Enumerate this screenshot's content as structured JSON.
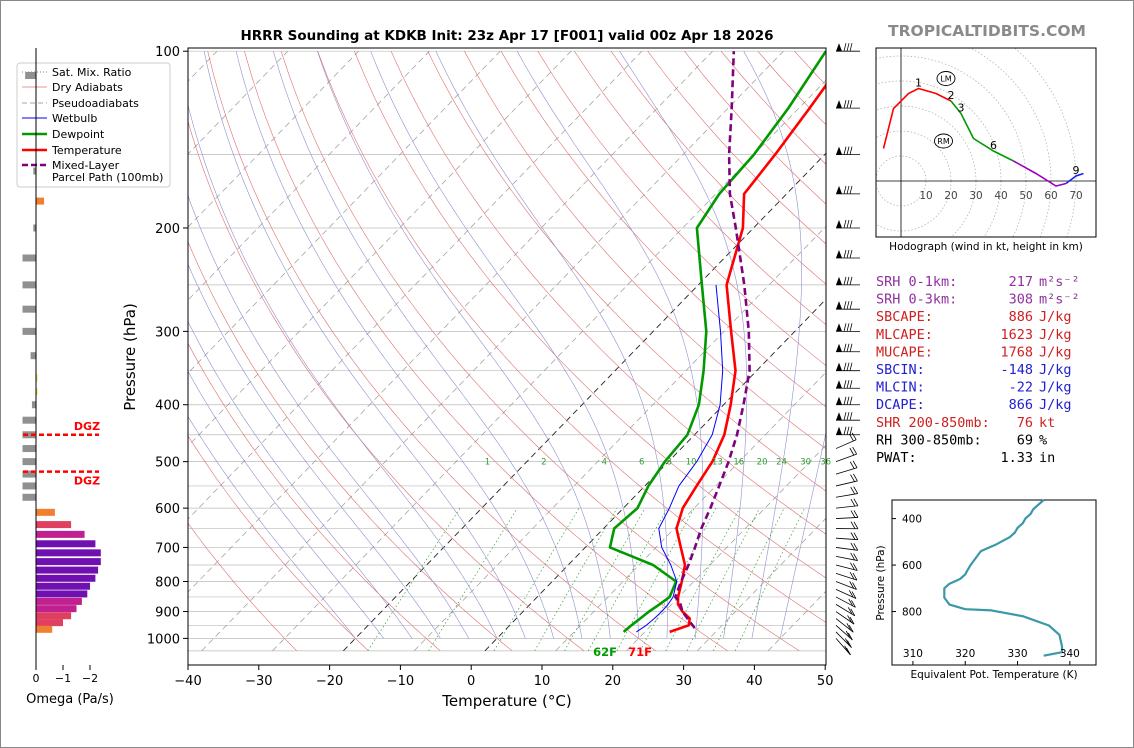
{
  "header": {
    "title": "HRRR Sounding at KDKB Init: 23z Apr 17 [F001] valid 00z Apr 18 2026",
    "brand": "TROPICALTIDBITS.COM"
  },
  "colors": {
    "temperature": "#ff0000",
    "dewpoint": "#009900",
    "wetbulb": "#0000ff",
    "parcel": "#800080",
    "dry_adiabat": "#e07070",
    "pseudoadiabat": "#9090d0",
    "mixing_ratio": "#30a030"
  },
  "legend": {
    "items": [
      {
        "label": "Sat. Mix. Ratio"
      },
      {
        "label": "Dry Adiabats"
      },
      {
        "label": "Pseudoadiabats"
      },
      {
        "label": "Wetbulb"
      },
      {
        "label": "Dewpoint"
      },
      {
        "label": "Temperature"
      },
      {
        "label": "Mixed-Layer",
        "label2": "Parcel Path (100mb)"
      }
    ]
  },
  "omega": {
    "xlabel": "Omega (Pa/s)",
    "ticks": [
      "0",
      "−1",
      "−2"
    ],
    "dgz_label": "DGZ"
  },
  "hodograph": {
    "caption": "Hodograph (wind in kt, height in km)",
    "rings": [
      "10",
      "20",
      "30",
      "40",
      "50",
      "60",
      "70"
    ],
    "height_labels": [
      "1",
      "2",
      "3",
      "6",
      "9"
    ],
    "lm_label": "LM",
    "rm_label": "RM"
  },
  "indices": [
    {
      "label": "SRH 0-1km:",
      "value": "217",
      "unit": "m²s⁻²",
      "color": "#9030a0"
    },
    {
      "label": "SRH 0-3km:",
      "value": "308",
      "unit": "m²s⁻²",
      "color": "#9030a0"
    },
    {
      "label": "SBCAPE:",
      "value": "886",
      "unit": "J/kg",
      "color": "#d02020"
    },
    {
      "label": "MLCAPE:",
      "value": "1623",
      "unit": "J/kg",
      "color": "#d02020"
    },
    {
      "label": "MUCAPE:",
      "value": "1768",
      "unit": "J/kg",
      "color": "#d02020"
    },
    {
      "label": "SBCIN:",
      "value": "-148",
      "unit": "J/kg",
      "color": "#2020d0"
    },
    {
      "label": "MLCIN:",
      "value": "-22",
      "unit": "J/kg",
      "color": "#2020d0"
    },
    {
      "label": "DCAPE:",
      "value": "866",
      "unit": "J/kg",
      "color": "#2020d0"
    },
    {
      "label": "SHR 200-850mb:",
      "value": "76",
      "unit": "kt",
      "color": "#d02020"
    },
    {
      "label": "RH 300-850mb:",
      "value": "69",
      "unit": "%",
      "color": "#000000"
    },
    {
      "label": "PWAT:",
      "value": "1.33",
      "unit": "in",
      "color": "#000000"
    }
  ],
  "surface_labels": {
    "dewpoint": "62F",
    "temperature": "71F"
  },
  "chart_data": [
    {
      "type": "line",
      "title": "HRRR Sounding at KDKB Init: 23z Apr 17 [F001] valid 00z Apr 18 2026",
      "xlabel": "Temperature (°C)",
      "ylabel": "Pressure (hPa)",
      "xlim": [
        -40,
        50
      ],
      "ylim": [
        1050,
        100
      ],
      "x_ticks": [
        "−40",
        "−30",
        "−20",
        "−10",
        "0",
        "10",
        "20",
        "30",
        "40",
        "50"
      ],
      "y_ticks": [
        "100",
        "200",
        "300",
        "400",
        "500",
        "600",
        "700",
        "800",
        "900",
        "1000"
      ],
      "mixing_ratio_labels": [
        "1",
        "2",
        "4",
        "6",
        "8",
        "10",
        "13",
        "16",
        "20",
        "24",
        "30",
        "36"
      ],
      "series": [
        {
          "name": "Temperature",
          "points": [
            [
              23.5,
              975
            ],
            [
              25.3,
              950
            ],
            [
              24.5,
              925
            ],
            [
              22.5,
              900
            ],
            [
              20.9,
              875
            ],
            [
              19.9,
              850
            ],
            [
              18.3,
              800
            ],
            [
              16.5,
              750
            ],
            [
              13.5,
              700
            ],
            [
              10.3,
              650
            ],
            [
              8.4,
              600
            ],
            [
              7.3,
              550
            ],
            [
              6.2,
              500
            ],
            [
              4.2,
              450
            ],
            [
              1.0,
              400
            ],
            [
              -3.0,
              350
            ],
            [
              -9.0,
              300
            ],
            [
              -16.0,
              250
            ],
            [
              -21.5,
              200
            ],
            [
              -26.0,
              175
            ],
            [
              -27.0,
              150
            ],
            [
              -28.5,
              125
            ],
            [
              -30.5,
              100
            ]
          ]
        },
        {
          "name": "Dewpoint",
          "points": [
            [
              17.0,
              975
            ],
            [
              17.2,
              950
            ],
            [
              17.5,
              925
            ],
            [
              17.8,
              900
            ],
            [
              18.3,
              875
            ],
            [
              18.7,
              850
            ],
            [
              17.5,
              800
            ],
            [
              12.0,
              750
            ],
            [
              3.5,
              700
            ],
            [
              1.5,
              650
            ],
            [
              2.0,
              600
            ],
            [
              0.5,
              550
            ],
            [
              -0.5,
              500
            ],
            [
              -1.0,
              450
            ],
            [
              -3.5,
              400
            ],
            [
              -7.5,
              350
            ],
            [
              -12.5,
              300
            ],
            [
              -19.5,
              250
            ],
            [
              -28.0,
              200
            ],
            [
              -29.5,
              175
            ],
            [
              -30.0,
              150
            ],
            [
              -31.5,
              125
            ],
            [
              -34.0,
              100
            ]
          ]
        },
        {
          "name": "Wetbulb",
          "points": [
            [
              18.8,
              975
            ],
            [
              19.3,
              950
            ],
            [
              19.5,
              925
            ],
            [
              19.6,
              900
            ],
            [
              19.5,
              875
            ],
            [
              19.2,
              850
            ],
            [
              17.6,
              800
            ],
            [
              14.5,
              750
            ],
            [
              10.8,
              700
            ],
            [
              7.8,
              650
            ],
            [
              6.5,
              600
            ],
            [
              4.8,
              550
            ],
            [
              4.0,
              500
            ],
            [
              2.5,
              450
            ],
            [
              -0.5,
              400
            ],
            [
              -4.8,
              350
            ],
            [
              -10.5,
              300
            ],
            [
              -17.5,
              250
            ]
          ]
        },
        {
          "name": "Mixed-Layer Parcel Path (100mb)",
          "points": [
            [
              26.5,
              960
            ],
            [
              24.5,
              930
            ],
            [
              22.5,
              900
            ],
            [
              21.0,
              870
            ],
            [
              19.5,
              850
            ],
            [
              18.2,
              800
            ],
            [
              17.0,
              750
            ],
            [
              15.5,
              700
            ],
            [
              13.8,
              650
            ],
            [
              12.3,
              600
            ],
            [
              10.5,
              550
            ],
            [
              8.5,
              500
            ],
            [
              6.0,
              450
            ],
            [
              2.8,
              400
            ],
            [
              -1.0,
              350
            ],
            [
              -6.5,
              300
            ],
            [
              -13.5,
              250
            ],
            [
              -22.5,
              200
            ],
            [
              -28.0,
              175
            ],
            [
              -33.5,
              150
            ],
            [
              -39.5,
              125
            ],
            [
              -47.0,
              100
            ]
          ]
        }
      ]
    },
    {
      "type": "line",
      "xlabel": "Equivalent Pot. Temperature (K)",
      "ylabel": "Pressure (hPa)",
      "xlim": [
        306,
        345
      ],
      "ylim": [
        1030,
        320
      ],
      "x_ticks": [
        "310",
        "320",
        "330",
        "340"
      ],
      "y_ticks": [
        "400",
        "600",
        "800"
      ],
      "series": [
        {
          "name": "",
          "points": [
            [
              335,
              990
            ],
            [
              338.5,
              975
            ],
            [
              338.5,
              950
            ],
            [
              338,
              900
            ],
            [
              336,
              860
            ],
            [
              331,
              820
            ],
            [
              325,
              795
            ],
            [
              320,
              790
            ],
            [
              317,
              770
            ],
            [
              316,
              740
            ],
            [
              316,
              700
            ],
            [
              317,
              680
            ],
            [
              319,
              660
            ],
            [
              320,
              640
            ],
            [
              320.5,
              620
            ],
            [
              321,
              600
            ],
            [
              322,
              570
            ],
            [
              323,
              540
            ],
            [
              326,
              510
            ],
            [
              328.5,
              480
            ],
            [
              329.5,
              460
            ],
            [
              330,
              440
            ],
            [
              331,
              420
            ],
            [
              331.5,
              400
            ],
            [
              332.5,
              380
            ],
            [
              333,
              360
            ],
            [
              334,
              340
            ],
            [
              335,
              320
            ]
          ]
        }
      ]
    },
    {
      "type": "line",
      "title": "",
      "xlabel": "",
      "ylabel": "",
      "series": [
        {
          "name": "",
          "points": [
            [
              -7,
              13
            ],
            [
              -3,
              29
            ],
            [
              3,
              35
            ],
            [
              7,
              37
            ],
            [
              14,
              35
            ],
            [
              20,
              32
            ],
            [
              24,
              27
            ],
            [
              29,
              17
            ],
            [
              37,
              12
            ],
            [
              45,
              8
            ],
            [
              54,
              3
            ],
            [
              62,
              -2
            ],
            [
              66,
              -1
            ],
            [
              70,
              2
            ],
            [
              73,
              3
            ]
          ]
        }
      ]
    },
    {
      "type": "bar",
      "xlabel": "Omega (Pa/s)",
      "x_ticks": [
        "0",
        "−1",
        "−2"
      ],
      "bars": [
        {
          "p": 110,
          "v": 0.4
        },
        {
          "p": 160,
          "v": 0.1
        },
        {
          "p": 180,
          "v": -0.3
        },
        {
          "p": 200,
          "v": 0.1
        },
        {
          "p": 225,
          "v": 0.5
        },
        {
          "p": 250,
          "v": 0.5
        },
        {
          "p": 275,
          "v": 0.5
        },
        {
          "p": 300,
          "v": 0.5
        },
        {
          "p": 330,
          "v": 0.2
        },
        {
          "p": 360,
          "v": -0.05
        },
        {
          "p": 380,
          "v": -0.05
        },
        {
          "p": 400,
          "v": 0.15
        },
        {
          "p": 425,
          "v": 0.5
        },
        {
          "p": 450,
          "v": 0.5
        },
        {
          "p": 475,
          "v": 0.5
        },
        {
          "p": 500,
          "v": 0.5
        },
        {
          "p": 525,
          "v": 0.5
        },
        {
          "p": 550,
          "v": 0.5
        },
        {
          "p": 575,
          "v": 0.5
        },
        {
          "p": 610,
          "v": -0.7
        },
        {
          "p": 640,
          "v": -1.3
        },
        {
          "p": 665,
          "v": -1.8
        },
        {
          "p": 690,
          "v": -2.2
        },
        {
          "p": 715,
          "v": -2.4
        },
        {
          "p": 740,
          "v": -2.4
        },
        {
          "p": 765,
          "v": -2.3
        },
        {
          "p": 790,
          "v": -2.2
        },
        {
          "p": 815,
          "v": -2.0
        },
        {
          "p": 840,
          "v": -1.9
        },
        {
          "p": 865,
          "v": -1.7
        },
        {
          "p": 890,
          "v": -1.5
        },
        {
          "p": 915,
          "v": -1.3
        },
        {
          "p": 940,
          "v": -1.0
        },
        {
          "p": 965,
          "v": -0.6
        }
      ],
      "dgz": [
        450,
        520
      ]
    }
  ]
}
